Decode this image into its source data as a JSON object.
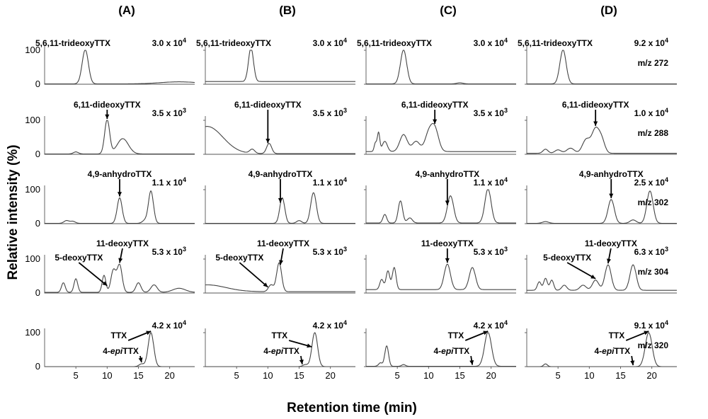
{
  "chart_data": {
    "type": "line",
    "ylabel": "Relative intensity (%)",
    "xlabel": "Retention time (min)",
    "xlim": [
      0,
      24
    ],
    "ylim": [
      0,
      100
    ],
    "y_ticks": [
      "0",
      "100"
    ],
    "x_ticks": [
      "5",
      "10",
      "15",
      "20"
    ],
    "x_tick_values": [
      5,
      10,
      15,
      20
    ],
    "columns": [
      {
        "title": "(A)",
        "rows": [
          {
            "scale_text": "3.0 x 10",
            "scale_exp": "4",
            "mz": "",
            "labels": [
              {
                "text": "5,6,11-trideoxyTTX",
                "target": 0
              }
            ],
            "peaks": [
              [
                6.5,
                100,
                0.5
              ],
              [
                21.5,
                6,
                3.0
              ]
            ],
            "baseline": 1
          },
          {
            "scale_text": "3.5 x 10",
            "scale_exp": "3",
            "mz": "",
            "labels": [
              {
                "text": "6,11-dideoxyTTX",
                "target": 10
              }
            ],
            "peaks": [
              [
                5.0,
                6,
                0.4
              ],
              [
                10.0,
                100,
                0.4
              ],
              [
                12.5,
                45,
                0.9
              ]
            ],
            "baseline": 1
          },
          {
            "scale_text": "1.1 x 10",
            "scale_exp": "4",
            "mz": "",
            "labels": [
              {
                "text": "4,9-anhydroTTX",
                "target": 12
              }
            ],
            "peaks": [
              [
                3.5,
                8,
                0.4
              ],
              [
                4.5,
                6,
                0.4
              ],
              [
                12.0,
                75,
                0.4
              ],
              [
                16.0,
                8,
                0.4
              ],
              [
                17.0,
                95,
                0.4
              ]
            ],
            "baseline": 1
          },
          {
            "scale_text": "5.3 x 10",
            "scale_exp": "3",
            "mz": "",
            "labels": [
              {
                "text": "11-deoxyTTX",
                "target": 12
              },
              {
                "text": "5-deoxyTTX",
                "target": 10
              }
            ],
            "peaks": [
              [
                3.0,
                28,
                0.3
              ],
              [
                5.0,
                40,
                0.3
              ],
              [
                9.5,
                50,
                0.3
              ],
              [
                11.0,
                65,
                0.4
              ],
              [
                12.0,
                80,
                0.4
              ],
              [
                15.0,
                28,
                0.4
              ],
              [
                17.5,
                22,
                0.5
              ],
              [
                21.5,
                12,
                1.0
              ]
            ],
            "baseline": 2
          },
          {
            "scale_text": "4.2 x 10",
            "scale_exp": "4",
            "mz": "",
            "labels": [
              {
                "text": "TTX",
                "target": 17
              },
              {
                "text": "4-epiTTX",
                "target": 15.5
              }
            ],
            "peaks": [
              [
                15.5,
                8,
                0.4
              ],
              [
                17.0,
                100,
                0.45
              ]
            ],
            "baseline": 0
          }
        ]
      },
      {
        "title": "(B)",
        "rows": [
          {
            "scale_text": "3.0 x 10",
            "scale_exp": "4",
            "mz": "",
            "labels": [
              {
                "text": "5,6,11-trideoxyTTX",
                "target": 0
              }
            ],
            "peaks": [
              [
                7.3,
                100,
                0.4
              ]
            ],
            "baseline": 8
          },
          {
            "scale_text": "3.5 x 10",
            "scale_exp": "3",
            "mz": "",
            "labels": [
              {
                "text": "6,11-dideoxyTTX",
                "target": 10
              }
            ],
            "peaks": [
              [
                0.3,
                80,
                2.5
              ],
              [
                7.5,
                12,
                0.4
              ],
              [
                10.2,
                30,
                0.4
              ]
            ],
            "baseline": 2
          },
          {
            "scale_text": "1.1 x 10",
            "scale_exp": "4",
            "mz": "",
            "labels": [
              {
                "text": "4,9-anhydroTTX",
                "target": 12
              }
            ],
            "peaks": [
              [
                12.3,
                75,
                0.4
              ],
              [
                15.0,
                8,
                0.4
              ],
              [
                17.3,
                90,
                0.45
              ]
            ],
            "baseline": 1
          },
          {
            "scale_text": "5.3 x 10",
            "scale_exp": "3",
            "mz": "",
            "labels": [
              {
                "text": "11-deoxyTTX",
                "target": 12
              },
              {
                "text": "5-deoxyTTX",
                "target": 10
              }
            ],
            "peaks": [
              [
                0.3,
                20,
                3.0
              ],
              [
                10.5,
                20,
                0.4
              ],
              [
                11.8,
                85,
                0.4
              ]
            ],
            "baseline": 4
          },
          {
            "scale_text": "4.2 x 10",
            "scale_exp": "4",
            "mz": "",
            "labels": [
              {
                "text": "TTX",
                "target": 17
              },
              {
                "text": "4-epiTTX",
                "target": 15.5
              }
            ],
            "peaks": [
              [
                16.0,
                6,
                0.4
              ],
              [
                17.5,
                100,
                0.45
              ]
            ],
            "baseline": 0
          }
        ]
      },
      {
        "title": "(C)",
        "rows": [
          {
            "scale_text": "3.0 x 10",
            "scale_exp": "4",
            "mz": "",
            "labels": [
              {
                "text": "5,6,11-trideoxyTTX",
                "target": 0
              }
            ],
            "peaks": [
              [
                6.0,
                100,
                0.5
              ],
              [
                15.0,
                3,
                0.5
              ]
            ],
            "baseline": 1
          },
          {
            "scale_text": "3.5 x 10",
            "scale_exp": "3",
            "mz": "",
            "labels": [
              {
                "text": "6,11-dideoxyTTX",
                "target": 11
              }
            ],
            "peaks": [
              [
                1.5,
                25,
                0.2
              ],
              [
                2.0,
                55,
                0.2
              ],
              [
                3.0,
                30,
                0.4
              ],
              [
                6.0,
                50,
                0.6
              ],
              [
                8.0,
                30,
                0.6
              ],
              [
                10.0,
                50,
                0.6
              ],
              [
                11.0,
                65,
                0.6
              ]
            ],
            "baseline": 8
          },
          {
            "scale_text": "1.1 x 10",
            "scale_exp": "4",
            "mz": "",
            "labels": [
              {
                "text": "4,9-anhydroTTX",
                "target": 13
              }
            ],
            "peaks": [
              [
                3.0,
                25,
                0.3
              ],
              [
                5.5,
                65,
                0.35
              ],
              [
                7.0,
                15,
                0.4
              ],
              [
                13.5,
                80,
                0.5
              ],
              [
                19.5,
                100,
                0.5
              ]
            ],
            "baseline": 2
          },
          {
            "scale_text": "5.3 x 10",
            "scale_exp": "3",
            "mz": "",
            "labels": [
              {
                "text": "11-deoxyTTX",
                "target": 13
              }
            ],
            "peaks": [
              [
                2.5,
                30,
                0.3
              ],
              [
                3.5,
                55,
                0.3
              ],
              [
                4.5,
                65,
                0.3
              ],
              [
                13.0,
                75,
                0.5
              ],
              [
                17.0,
                65,
                0.5
              ]
            ],
            "baseline": 10
          },
          {
            "scale_text": "4.2 x 10",
            "scale_exp": "4",
            "mz": "",
            "labels": [
              {
                "text": "TTX",
                "target": 19.5
              },
              {
                "text": "4-epiTTX",
                "target": 17
              }
            ],
            "peaks": [
              [
                2.3,
                10,
                0.3
              ],
              [
                3.3,
                60,
                0.3
              ],
              [
                6.0,
                5,
                0.3
              ],
              [
                19.5,
                100,
                0.55
              ]
            ],
            "baseline": 1
          }
        ]
      },
      {
        "title": "(D)",
        "rows": [
          {
            "scale_text": "9.2 x 10",
            "scale_exp": "4",
            "mz": "m/z 272",
            "labels": [
              {
                "text": "5,6,11-trideoxyTTX",
                "target": 0
              }
            ],
            "peaks": [
              [
                5.8,
                100,
                0.5
              ]
            ],
            "baseline": 1
          },
          {
            "scale_text": "1.0 x 10",
            "scale_exp": "4",
            "mz": "m/z 288",
            "labels": [
              {
                "text": "6,11-dideoxyTTX",
                "target": 11
              }
            ],
            "peaks": [
              [
                3.0,
                12,
                0.4
              ],
              [
                5.0,
                10,
                0.5
              ],
              [
                7.0,
                15,
                0.6
              ],
              [
                9.5,
                40,
                0.6
              ],
              [
                11.0,
                70,
                0.6
              ],
              [
                12.0,
                35,
                0.5
              ]
            ],
            "baseline": 3
          },
          {
            "scale_text": "2.5 x 10",
            "scale_exp": "4",
            "mz": "m/z 302",
            "labels": [
              {
                "text": "4,9-anhydroTTX",
                "target": 13.5
              }
            ],
            "peaks": [
              [
                3.0,
                5,
                0.5
              ],
              [
                13.5,
                70,
                0.5
              ],
              [
                17.0,
                10,
                0.5
              ],
              [
                19.7,
                95,
                0.5
              ]
            ],
            "baseline": 1
          },
          {
            "scale_text": "6.3 x 10",
            "scale_exp": "3",
            "mz": "m/z 304",
            "labels": [
              {
                "text": "11-deoxyTTX",
                "target": 13
              },
              {
                "text": "5-deoxyTTX",
                "target": 11
              }
            ],
            "peaks": [
              [
                2.0,
                25,
                0.3
              ],
              [
                3.0,
                35,
                0.3
              ],
              [
                4.0,
                30,
                0.3
              ],
              [
                6.0,
                15,
                0.4
              ],
              [
                9.0,
                15,
                0.5
              ],
              [
                11.0,
                30,
                0.5
              ],
              [
                13.0,
                75,
                0.5
              ],
              [
                17.0,
                75,
                0.5
              ]
            ],
            "baseline": 8
          },
          {
            "scale_text": "9.1 x 10",
            "scale_exp": "4",
            "mz": "m/z 320",
            "labels": [
              {
                "text": "TTX",
                "target": 19.5
              },
              {
                "text": "4-epiTTX",
                "target": 17
              }
            ],
            "peaks": [
              [
                3.0,
                8,
                0.3
              ],
              [
                19.5,
                100,
                0.55
              ]
            ],
            "baseline": 0
          }
        ]
      }
    ]
  }
}
